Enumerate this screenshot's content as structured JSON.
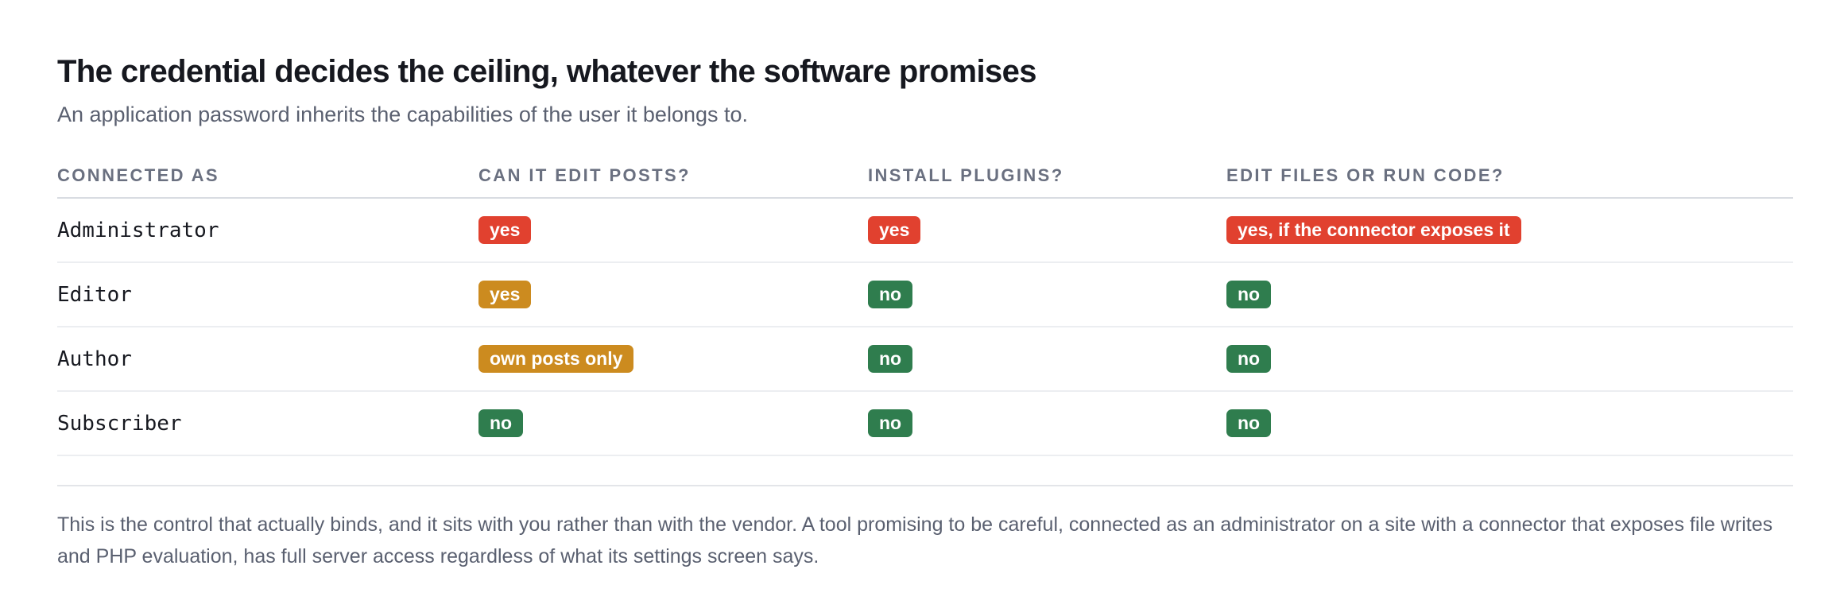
{
  "title": "The credential decides the ceiling, whatever the software promises",
  "subtitle": "An application password inherits the capabilities of the user it belongs to.",
  "table": {
    "headers": [
      "CONNECTED AS",
      "CAN IT EDIT POSTS?",
      "INSTALL PLUGINS?",
      "EDIT FILES OR RUN CODE?"
    ],
    "rows": [
      {
        "role": "Administrator",
        "edit_posts": "yes",
        "install_plugins": "yes",
        "edit_files": "yes, if the connector exposes it"
      },
      {
        "role": "Editor",
        "edit_posts": "yes",
        "install_plugins": "no",
        "edit_files": "no"
      },
      {
        "role": "Author",
        "edit_posts": "own posts only",
        "install_plugins": "no",
        "edit_files": "no"
      },
      {
        "role": "Subscriber",
        "edit_posts": "no",
        "install_plugins": "no",
        "edit_files": "no"
      }
    ]
  },
  "colors": {
    "danger": "#e1412f",
    "caution": "#cc8b1f",
    "safe": "#2f7d4e"
  },
  "note": "This is the control that actually binds, and it sits with you rather than with the vendor. A tool promising to be careful, connected as an administrator on a site with a connector that exposes file writes and PHP evaluation, has full server access regardless of what its settings screen says."
}
